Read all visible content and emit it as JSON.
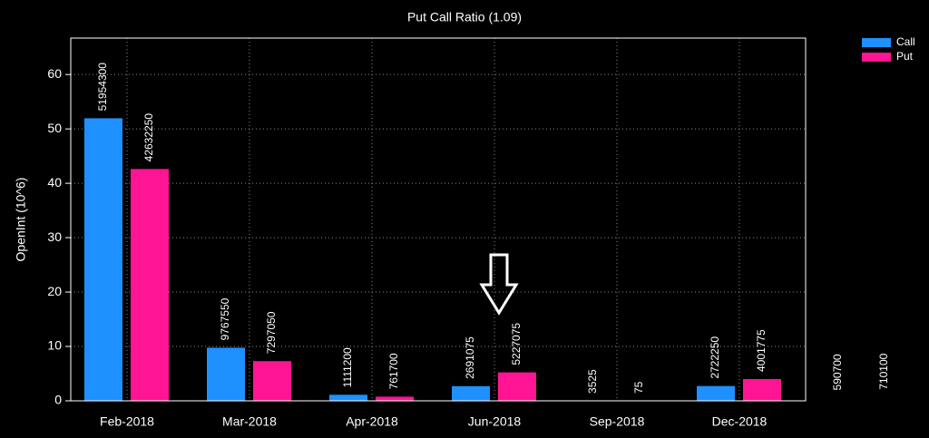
{
  "chart_data": {
    "type": "bar",
    "title": "Put Call Ratio (1.09)",
    "y_label": "OpenInt (10^6)",
    "categories": [
      "Feb-2018",
      "Mar-2018",
      "Apr-2018",
      "Jun-2018",
      "Sep-2018",
      "Dec-2018",
      null
    ],
    "series": [
      {
        "name": "Call",
        "color": "#1e90ff",
        "values": [
          51.9543,
          9.76755,
          1.1112,
          2.691075,
          0.003525,
          2.72225,
          0.5907
        ],
        "value_labels": [
          "51954300",
          "9767550",
          "1111200",
          "2691075",
          "3525",
          "2722250",
          "590700"
        ]
      },
      {
        "name": "Put",
        "color": "#ff1493",
        "values": [
          42.63225,
          7.29705,
          0.7617,
          5.227075,
          7.5e-05,
          4.001775,
          0.7101
        ],
        "value_labels": [
          "42632250",
          "7297050",
          "761700",
          "5227075",
          "75",
          "4001775",
          "710100"
        ]
      }
    ],
    "ylim": [
      0,
      66.7
    ],
    "yticks": [
      0,
      10,
      20,
      30,
      40,
      50,
      60
    ],
    "grid": true,
    "legend": "top-right"
  }
}
